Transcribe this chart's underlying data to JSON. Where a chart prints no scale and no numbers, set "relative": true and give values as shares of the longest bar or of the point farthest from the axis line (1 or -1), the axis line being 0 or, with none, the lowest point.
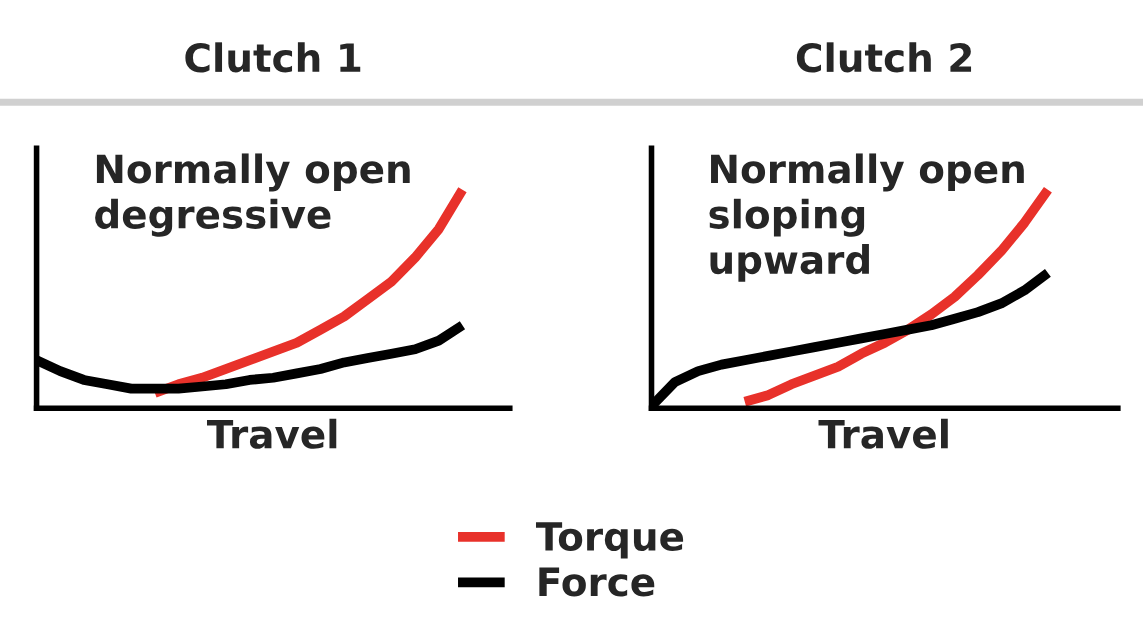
{
  "chart_data": [
    {
      "type": "line",
      "title": "Clutch 1",
      "xlabel": "Travel",
      "relative": true,
      "legend": "bottom",
      "annotations": [
        "Normally open\ndegressive"
      ],
      "categories": [
        null,
        null,
        null,
        null,
        null,
        null,
        null,
        null,
        null,
        null,
        null,
        null,
        null,
        null,
        null,
        null,
        null,
        null,
        null,
        null,
        null
      ],
      "series": [
        {
          "name": "Torque",
          "color": "#e8312a",
          "values": [
            null,
            null,
            null,
            null,
            null,
            0.07,
            0.11,
            0.14,
            0.18,
            0.22,
            0.26,
            0.3,
            0.36,
            0.42,
            0.5,
            0.58,
            0.69,
            0.82,
            1.0,
            null,
            null
          ]
        },
        {
          "name": "Force",
          "color": "#000000",
          "values": [
            0.22,
            0.17,
            0.13,
            0.11,
            0.09,
            0.09,
            0.09,
            0.1,
            0.11,
            0.13,
            0.14,
            0.16,
            0.18,
            0.21,
            0.23,
            0.25,
            0.27,
            0.31,
            0.38,
            null,
            null
          ]
        }
      ]
    },
    {
      "type": "line",
      "title": "Clutch 2",
      "xlabel": "Travel",
      "relative": true,
      "annotations": [
        "Normally open\nsloping\nupward"
      ],
      "categories": [
        null,
        null,
        null,
        null,
        null,
        null,
        null,
        null,
        null,
        null,
        null,
        null,
        null,
        null,
        null,
        null,
        null,
        null,
        null,
        null,
        null
      ],
      "series": [
        {
          "color": "#e8312a",
          "values": [
            null,
            null,
            null,
            null,
            0.03,
            0.06,
            0.11,
            0.15,
            0.19,
            0.25,
            0.3,
            0.36,
            0.43,
            0.51,
            0.61,
            0.72,
            0.85,
            1.0,
            null,
            null,
            null
          ]
        },
        {
          "color": "#000000",
          "values": [
            0.01,
            0.12,
            0.17,
            0.2,
            0.22,
            0.24,
            0.26,
            0.28,
            0.3,
            0.32,
            0.34,
            0.36,
            0.38,
            0.41,
            0.44,
            0.48,
            0.54,
            0.62,
            null,
            null,
            null
          ]
        }
      ]
    }
  ]
}
